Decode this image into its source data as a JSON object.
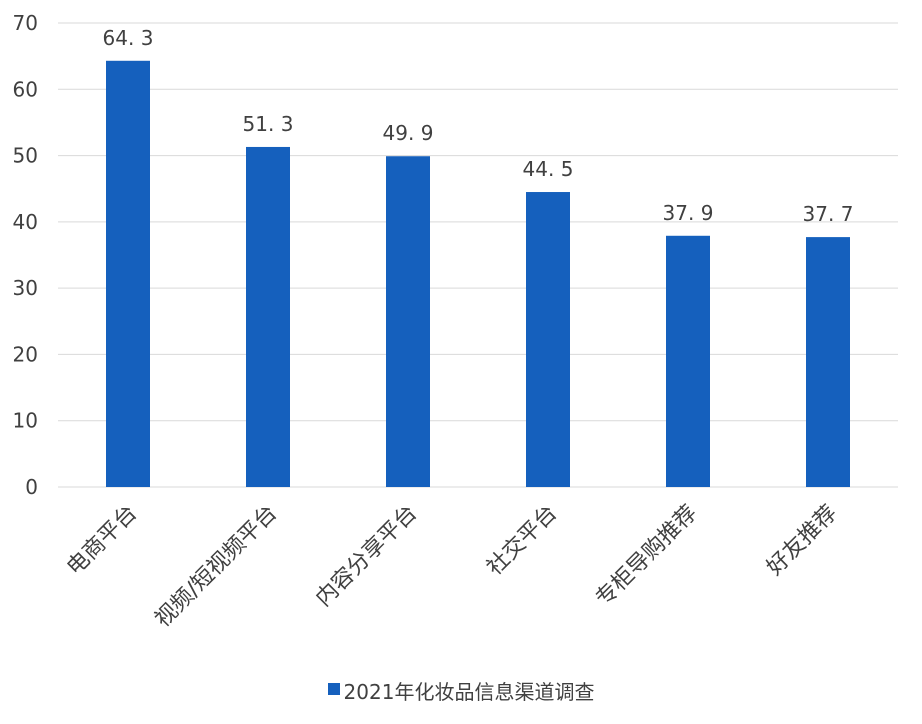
{
  "chart_data": {
    "type": "bar",
    "title": "",
    "xlabel": "",
    "ylabel": "",
    "categories": [
      "电商平台",
      "视频/短视频平台",
      "内容分享平台",
      "社交平台",
      "专柜导购推荐",
      "好友推荐"
    ],
    "series": [
      {
        "name": "2021年化妆品信息渠道调查",
        "values": [
          64.3,
          51.3,
          49.9,
          44.5,
          37.9,
          37.7
        ]
      }
    ],
    "data_labels": [
      "64. 3",
      "51. 3",
      "49. 9",
      "44. 5",
      "37. 9",
      "37. 7"
    ],
    "ylim": [
      0,
      70
    ],
    "yticks": [
      0,
      10,
      20,
      30,
      40,
      50,
      60,
      70
    ],
    "grid": true,
    "legend_position": "bottom",
    "colors": {
      "bar": "#1560BD",
      "grid": "#D9D9D9",
      "text": "#404040"
    }
  }
}
